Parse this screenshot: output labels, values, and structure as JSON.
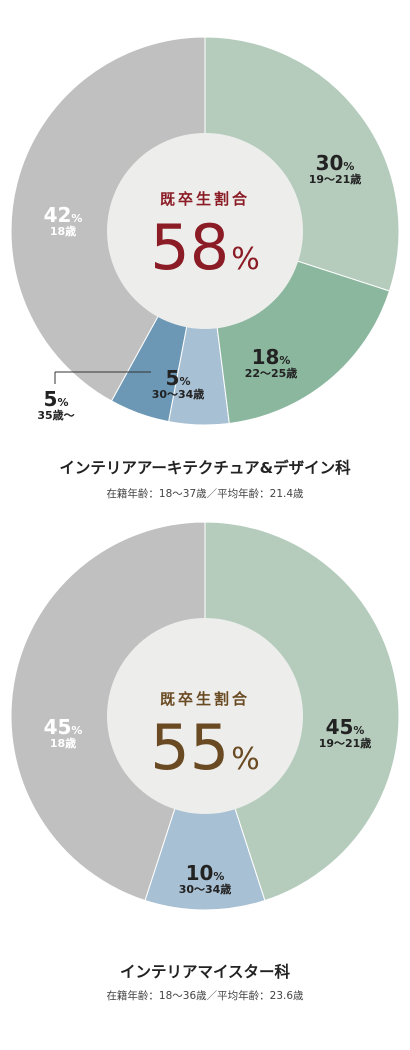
{
  "colors": {
    "grey": "#bfc0bf",
    "green_light": "#b5ccbd",
    "green_mid": "#8bb79f",
    "blue_light": "#a8c0d3",
    "blue_mid": "#6c98b6",
    "center_fill": "#edeeec",
    "accent_red": "#8b1b24",
    "accent_brown": "#6a4a22"
  },
  "charts": [
    {
      "center_label": "既卒生割合",
      "center_value": "58",
      "center_unit": "%",
      "title": "インテリアアーキテクチュア&デザイン科",
      "subtitle": "在籍年齢：18〜37歳／平均年齢：21.4歳",
      "segments": [
        {
          "pct": "30",
          "unit": "%",
          "age": "19〜21歳"
        },
        {
          "pct": "18",
          "unit": "%",
          "age": "22〜25歳"
        },
        {
          "pct": "5",
          "unit": "%",
          "age": "30〜34歳"
        },
        {
          "pct": "5",
          "unit": "%",
          "age": "35歳〜"
        },
        {
          "pct": "42",
          "unit": "%",
          "age": "18歳"
        }
      ]
    },
    {
      "center_label": "既卒生割合",
      "center_value": "55",
      "center_unit": "%",
      "title": "インテリアマイスター科",
      "subtitle": "在籍年齢：18〜36歳／平均年齢：23.6歳",
      "segments": [
        {
          "pct": "45",
          "unit": "%",
          "age": "19〜21歳"
        },
        {
          "pct": "10",
          "unit": "%",
          "age": "30〜34歳"
        },
        {
          "pct": "45",
          "unit": "%",
          "age": "18歳"
        }
      ]
    }
  ],
  "chart_data": [
    {
      "type": "pie",
      "title": "インテリアアーキテクチュア&デザイン科",
      "categories": [
        "19〜21歳",
        "22〜25歳",
        "30〜34歳",
        "35歳〜",
        "18歳"
      ],
      "values": [
        30,
        18,
        5,
        5,
        42
      ],
      "colors": [
        "#b5ccbd",
        "#8bb79f",
        "#a8c0d3",
        "#6c98b6",
        "#bfc0bf"
      ]
    },
    {
      "type": "pie",
      "title": "インテリアマイスター科",
      "categories": [
        "19〜21歳",
        "30〜34歳",
        "18歳"
      ],
      "values": [
        45,
        10,
        45
      ],
      "colors": [
        "#b5ccbd",
        "#a8c0d3",
        "#bfc0bf"
      ]
    }
  ]
}
